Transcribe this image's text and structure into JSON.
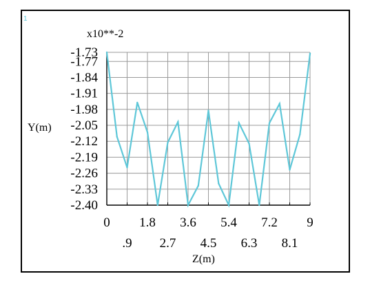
{
  "corner_mark": "1",
  "chart_data": {
    "type": "line",
    "scale_label": "x10**-2",
    "xlabel": "Z(m)",
    "ylabel": "Y(m)",
    "x_ticks_row1": [
      "0",
      "1.8",
      "3.6",
      "5.4",
      "7.2",
      "9"
    ],
    "x_ticks_row2": [
      ".9",
      "2.7",
      "4.5",
      "6.3",
      "8.1"
    ],
    "y_ticks": [
      "-1.73",
      "-1.77",
      "-1.84",
      "-1.91",
      "-1.98",
      "-2.05",
      "-2.12",
      "-2.19",
      "-2.26",
      "-2.33",
      "-2.40"
    ],
    "xlim": [
      0,
      9
    ],
    "ylim": [
      -2.4,
      -1.73
    ],
    "grid": true,
    "colors": {
      "line": "#5ec7d8",
      "grid": "#9a9a9a",
      "axis": "#000000"
    },
    "series": [
      {
        "x": [
          0,
          0.45,
          0.9,
          1.35,
          1.8,
          2.25,
          2.7,
          3.15,
          3.6,
          4.05,
          4.5,
          4.95,
          5.4,
          5.85,
          6.3,
          6.75,
          7.2,
          7.65,
          8.1,
          8.55,
          9.0
        ],
        "y": [
          -1.73,
          -2.1,
          -2.235,
          -1.95,
          -2.08,
          -2.4,
          -2.125,
          -2.035,
          -2.4,
          -2.315,
          -1.985,
          -2.305,
          -2.4,
          -2.04,
          -2.13,
          -2.4,
          -2.04,
          -1.955,
          -2.245,
          -2.09,
          -1.735
        ]
      }
    ]
  }
}
